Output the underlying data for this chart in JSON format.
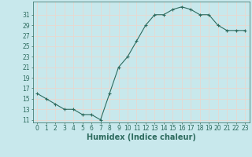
{
  "x": [
    0,
    1,
    2,
    3,
    4,
    5,
    6,
    7,
    8,
    9,
    10,
    11,
    12,
    13,
    14,
    15,
    16,
    17,
    18,
    19,
    20,
    21,
    22,
    23
  ],
  "y": [
    16,
    15,
    14,
    13,
    13,
    12,
    12,
    11,
    16,
    21,
    23,
    26,
    29,
    31,
    31,
    32,
    32.5,
    32,
    31,
    31,
    29,
    28,
    28,
    28
  ],
  "line_color": "#2d6b5e",
  "marker": "+",
  "marker_size": 3,
  "bg_color": "#c8e8ec",
  "grid_color": "#e8d8d0",
  "xlabel": "Humidex (Indice chaleur)",
  "xlabel_fontsize": 7,
  "xlabel_color": "#2d6b5e",
  "tick_color": "#2d6b5e",
  "tick_fontsize": 5.5,
  "ylim": [
    10.5,
    33.5
  ],
  "yticks": [
    11,
    13,
    15,
    17,
    19,
    21,
    23,
    25,
    27,
    29,
    31
  ],
  "xlim": [
    -0.5,
    23.5
  ],
  "xticks": [
    0,
    1,
    2,
    3,
    4,
    5,
    6,
    7,
    8,
    9,
    10,
    11,
    12,
    13,
    14,
    15,
    16,
    17,
    18,
    19,
    20,
    21,
    22,
    23
  ]
}
